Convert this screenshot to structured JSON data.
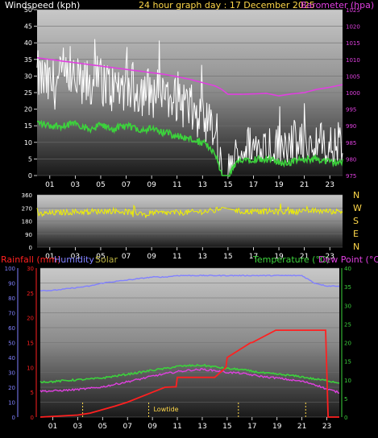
{
  "header": {
    "left": "Windspeed (kph)",
    "center": "24 hour graph day : 17 December 2025",
    "right": "Barometer (hpa)"
  },
  "colors": {
    "background": "#000000",
    "axis_text": "#4f57ff",
    "yellow": "#ffd84a",
    "baro": "#e040e0",
    "gust": "#ffffff",
    "wind": "#3cd23c",
    "dir": "#f0f000",
    "rain": "#ff2020",
    "humidity": "#8080ff",
    "temperature": "#3cd23c",
    "dewpoint": "#e040e0"
  },
  "chart_data": [
    {
      "type": "line",
      "panel": "wind-barometer",
      "x_ticks": [
        "01",
        "03",
        "05",
        "07",
        "09",
        "11",
        "13",
        "15",
        "17",
        "19",
        "21",
        "23"
      ],
      "ylim_left": [
        0,
        50
      ],
      "yticks_left": [
        0,
        5,
        10,
        15,
        20,
        25,
        30,
        35,
        40,
        45,
        50
      ],
      "ylim_right": [
        975,
        1025
      ],
      "yticks_right": [
        975,
        980,
        985,
        990,
        995,
        1000,
        1005,
        1010,
        1015,
        1020,
        1025
      ],
      "grid": true,
      "x": [
        0,
        1,
        2,
        3,
        4,
        5,
        6,
        7,
        8,
        9,
        10,
        11,
        12,
        13,
        14,
        14.5,
        15,
        16,
        17,
        18,
        19,
        20,
        21,
        22,
        23,
        24
      ],
      "series": [
        {
          "name": "Windspeed (gust)",
          "axis": "left",
          "values": [
            30,
            27,
            29,
            28,
            27,
            29,
            26,
            27,
            26,
            25,
            24,
            24,
            20,
            16,
            12,
            0,
            0,
            7,
            8,
            9,
            8,
            9,
            8,
            9,
            8,
            9
          ]
        },
        {
          "name": "Windspeed (avg)",
          "axis": "left",
          "values": [
            16,
            15,
            15,
            16,
            14,
            15,
            14,
            15,
            14,
            14,
            13,
            12,
            11,
            10,
            7,
            0,
            0,
            5,
            5,
            5,
            4,
            4,
            5,
            5,
            4,
            4
          ]
        },
        {
          "name": "Barometer",
          "axis": "right",
          "values": [
            1010.5,
            1010,
            1009.5,
            1009,
            1008.5,
            1008,
            1007.5,
            1007,
            1006.5,
            1006,
            1005.5,
            1004.8,
            1004,
            1003,
            1002,
            1001,
            999.5,
            999.5,
            999.6,
            999.8,
            999,
            999.6,
            1000,
            1001,
            1001.6,
            1002.4
          ]
        }
      ]
    },
    {
      "type": "line",
      "panel": "wind-direction",
      "x_ticks": [
        "01",
        "03",
        "05",
        "07",
        "09",
        "11",
        "13",
        "15",
        "17",
        "19",
        "21",
        "23"
      ],
      "ylim": [
        0,
        360
      ],
      "yticks": [
        0,
        90,
        180,
        270,
        360
      ],
      "compass": [
        "N",
        "W",
        "S",
        "E",
        "N"
      ],
      "grid": true,
      "x": [
        0,
        2,
        4,
        6,
        8,
        10,
        12,
        14,
        14.5,
        16,
        18,
        20,
        22,
        24
      ],
      "values": [
        225,
        240,
        245,
        250,
        235,
        235,
        240,
        250,
        275,
        245,
        245,
        245,
        250,
        245
      ]
    },
    {
      "type": "line",
      "panel": "rain-humidity-temperature",
      "legend_left": [
        "Rainfall (mm)",
        "Humidity",
        "Solar"
      ],
      "legend_right": [
        "Temperature (°C)",
        "Dew Point (°C)"
      ],
      "x_ticks": [
        "01",
        "03",
        "05",
        "07",
        "09",
        "11",
        "13",
        "15",
        "17",
        "19",
        "21",
        "23"
      ],
      "yticks_hum": [
        0,
        10,
        20,
        30,
        40,
        50,
        60,
        70,
        80,
        90,
        100
      ],
      "yticks_rain": [
        0,
        5,
        10,
        15,
        20,
        25,
        30
      ],
      "yticks_temp": [
        0,
        5,
        10,
        15,
        20,
        25,
        30,
        35,
        40
      ],
      "ylim_rain": [
        0,
        30
      ],
      "ylim_temp": [
        0,
        40
      ],
      "annotation": "Lowtide",
      "tide_marks_hours": [
        3.4,
        8.7,
        15.9,
        21.3
      ],
      "grid": true,
      "humidity": {
        "x": [
          0,
          1,
          2,
          3,
          4,
          5,
          6,
          7,
          8,
          9,
          10,
          11,
          12,
          13,
          14,
          15,
          16,
          17,
          18,
          19,
          20,
          21,
          22,
          23,
          24
        ],
        "values": [
          85,
          85,
          86,
          87,
          88,
          90,
          91,
          92,
          93,
          94,
          94,
          95,
          95,
          95,
          95,
          95,
          95,
          95,
          95,
          95,
          95,
          95,
          90,
          88,
          88
        ]
      },
      "rainfall": {
        "x": [
          0,
          3,
          4,
          5,
          6,
          7,
          8,
          9,
          10,
          10.9,
          11,
          12,
          14,
          14.9,
          15,
          16.9,
          17,
          18.9,
          19,
          22.9,
          23.1,
          24
        ],
        "values": [
          0,
          0.4,
          0.8,
          1.5,
          2.2,
          3,
          4,
          5,
          6,
          6.1,
          8,
          8,
          8,
          10,
          12,
          15,
          15,
          17.5,
          17.5,
          17.5,
          0,
          0
        ]
      },
      "temperature": {
        "x": [
          0,
          1,
          2,
          3,
          4,
          5,
          6,
          7,
          8,
          9,
          10,
          11,
          12,
          13,
          14,
          15,
          16,
          17,
          18,
          19,
          20,
          21,
          22,
          23,
          24
        ],
        "values": [
          9.5,
          9.5,
          9.8,
          10,
          10.2,
          10.5,
          11,
          11.5,
          12,
          12.6,
          13,
          13.6,
          13.8,
          13.9,
          13.5,
          13,
          12.8,
          12.3,
          11.8,
          11.5,
          11.2,
          10.8,
          10.2,
          9.8,
          9.2
        ]
      },
      "dewpoint": {
        "x": [
          0,
          1,
          2,
          3,
          4,
          5,
          6,
          7,
          8,
          9,
          10,
          11,
          12,
          13,
          14,
          15,
          16,
          17,
          18,
          19,
          20,
          21,
          22,
          23,
          24
        ],
        "values": [
          7,
          7,
          7.2,
          7.4,
          7.7,
          8.1,
          8.8,
          9.5,
          10.2,
          11,
          11.6,
          12.2,
          12.6,
          12.8,
          12.5,
          12,
          11.8,
          11.3,
          10.8,
          10.5,
          10,
          9.6,
          8.8,
          7.5,
          6.6
        ]
      }
    }
  ]
}
